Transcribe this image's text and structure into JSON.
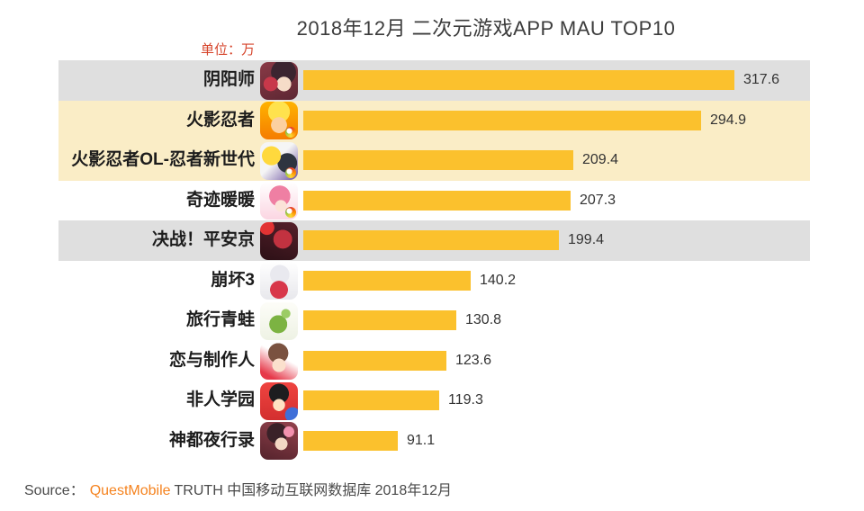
{
  "page": {
    "title": "2018年12月 二次元游戏APP MAU TOP10",
    "unit_label": "单位：万",
    "source": {
      "prefix": "Source：",
      "brand": "QuestMobile",
      "suffix": "TRUTH 中国移动互联网数据库 2018年12月"
    }
  },
  "colors": {
    "bar": "#fbc12d",
    "highlight_gray": "#dfdfdf",
    "highlight_cream": "#faedc6",
    "brand_orange": "#f5831f",
    "unit_label_red": "#d6452c",
    "text_dark": "#333333"
  },
  "chart_data": {
    "type": "bar",
    "orientation": "horizontal",
    "title": "2018年12月 二次元游戏APP MAU TOP10",
    "unit_label": "单位：万",
    "xlabel": "",
    "ylabel": "",
    "grid": false,
    "legend": null,
    "categories": [
      "阴阳师",
      "火影忍者",
      "火影忍者OL-忍者新世代",
      "奇迹暖暖",
      "决战！平安京",
      "崩坏3",
      "旅行青蛙",
      "恋与制作人",
      "非人学园",
      "神都夜行录"
    ],
    "values": [
      317.6,
      294.9,
      209.4,
      207.3,
      199.4,
      140.2,
      130.8,
      123.6,
      119.3,
      91.1
    ],
    "rows": [
      {
        "rank": 1,
        "label": "阴阳师",
        "value": "317.6",
        "icon": "onmyoji-app-icon",
        "tencent_badge": false,
        "highlight": "gray"
      },
      {
        "rank": 2,
        "label": "火影忍者",
        "value": "294.9",
        "icon": "naruto-app-icon",
        "tencent_badge": true,
        "highlight": "cream"
      },
      {
        "rank": 3,
        "label": "火影忍者OL-忍者新世代",
        "value": "209.4",
        "icon": "naruto-ol-app-icon",
        "tencent_badge": true,
        "highlight": "cream"
      },
      {
        "rank": 4,
        "label": "奇迹暖暖",
        "value": "207.3",
        "icon": "miracle-nikki-app-icon",
        "tencent_badge": true,
        "highlight": ""
      },
      {
        "rank": 5,
        "label": "决战！平安京",
        "value": "199.4",
        "icon": "onmyoji-arena-app-icon",
        "tencent_badge": false,
        "highlight": "gray"
      },
      {
        "rank": 6,
        "label": "崩坏3",
        "value": "140.2",
        "icon": "honkai3-app-icon",
        "tencent_badge": false,
        "highlight": ""
      },
      {
        "rank": 7,
        "label": "旅行青蛙",
        "value": "130.8",
        "icon": "travel-frog-app-icon",
        "tencent_badge": false,
        "highlight": ""
      },
      {
        "rank": 8,
        "label": "恋与制作人",
        "value": "123.6",
        "icon": "love-producer-app-icon",
        "tencent_badge": false,
        "highlight": ""
      },
      {
        "rank": 9,
        "label": "非人学园",
        "value": "119.3",
        "icon": "feiren-xueyuan-app-icon",
        "tencent_badge": false,
        "highlight": ""
      },
      {
        "rank": 10,
        "label": "神都夜行录",
        "value": "91.1",
        "icon": "shendu-yexinglu-app-icon",
        "tencent_badge": false,
        "highlight": ""
      }
    ]
  }
}
